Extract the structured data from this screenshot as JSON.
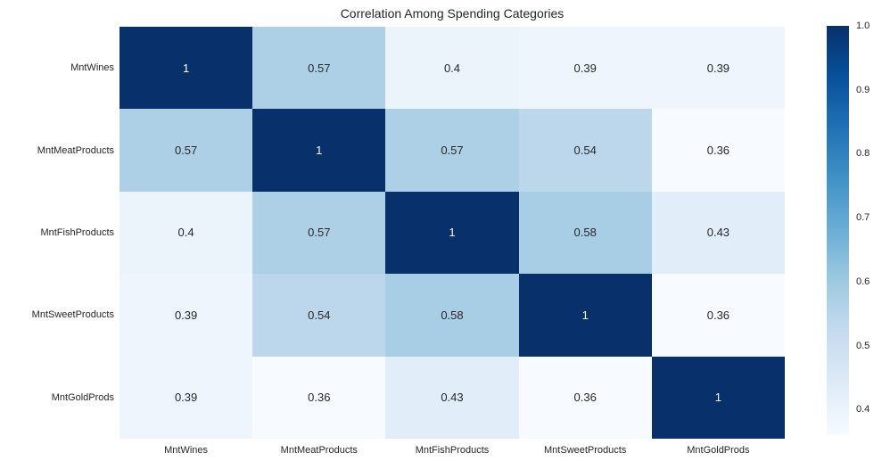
{
  "title": "Correlation Among Spending Categories",
  "colors": {
    "background": "#ffffff",
    "colormap_name": "Blues",
    "colormap_stops": [
      "#f7fbff",
      "#deebf7",
      "#c6dbef",
      "#9ecae1",
      "#6baed6",
      "#4292c6",
      "#2171b5",
      "#08519c",
      "#08306b"
    ],
    "annotation_dark_text": "#262626",
    "annotation_light_text": "#ffffff",
    "tick_label_text": "#262626"
  },
  "chart_data": {
    "type": "heatmap",
    "title": "Correlation Among Spending Categories",
    "categories": [
      "MntWines",
      "MntMeatProducts",
      "MntFishProducts",
      "MntSweetProducts",
      "MntGoldProds"
    ],
    "x_tick_labels": [
      "MntWines",
      "MntMeatProducts",
      "MntFishProducts",
      "MntSweetProducts",
      "MntGoldProds"
    ],
    "y_tick_labels": [
      "MntWines",
      "MntMeatProducts",
      "MntFishProducts",
      "MntSweetProducts",
      "MntGoldProds"
    ],
    "matrix": [
      [
        1,
        0.57,
        0.4,
        0.39,
        0.39
      ],
      [
        0.57,
        1,
        0.57,
        0.54,
        0.36
      ],
      [
        0.4,
        0.57,
        1,
        0.58,
        0.43
      ],
      [
        0.39,
        0.54,
        0.58,
        1,
        0.36
      ],
      [
        0.39,
        0.36,
        0.43,
        0.36,
        1
      ]
    ],
    "cell_labels": [
      [
        "1",
        "0.57",
        "0.4",
        "0.39",
        "0.39"
      ],
      [
        "0.57",
        "1",
        "0.57",
        "0.54",
        "0.36"
      ],
      [
        "0.4",
        "0.57",
        "1",
        "0.58",
        "0.43"
      ],
      [
        "0.39",
        "0.54",
        "0.58",
        "1",
        "0.36"
      ],
      [
        "0.39",
        "0.36",
        "0.43",
        "0.36",
        "1"
      ]
    ],
    "vmin": 0.36,
    "vmax": 1.0,
    "annotations": true,
    "grid": false,
    "legend_position": "right",
    "colorbar_tick_labels": [
      "1.0",
      "0.9",
      "0.8",
      "0.7",
      "0.6",
      "0.5",
      "0.4"
    ],
    "colorbar_tick_values": [
      1.0,
      0.9,
      0.8,
      0.7,
      0.6,
      0.5,
      0.4
    ]
  }
}
